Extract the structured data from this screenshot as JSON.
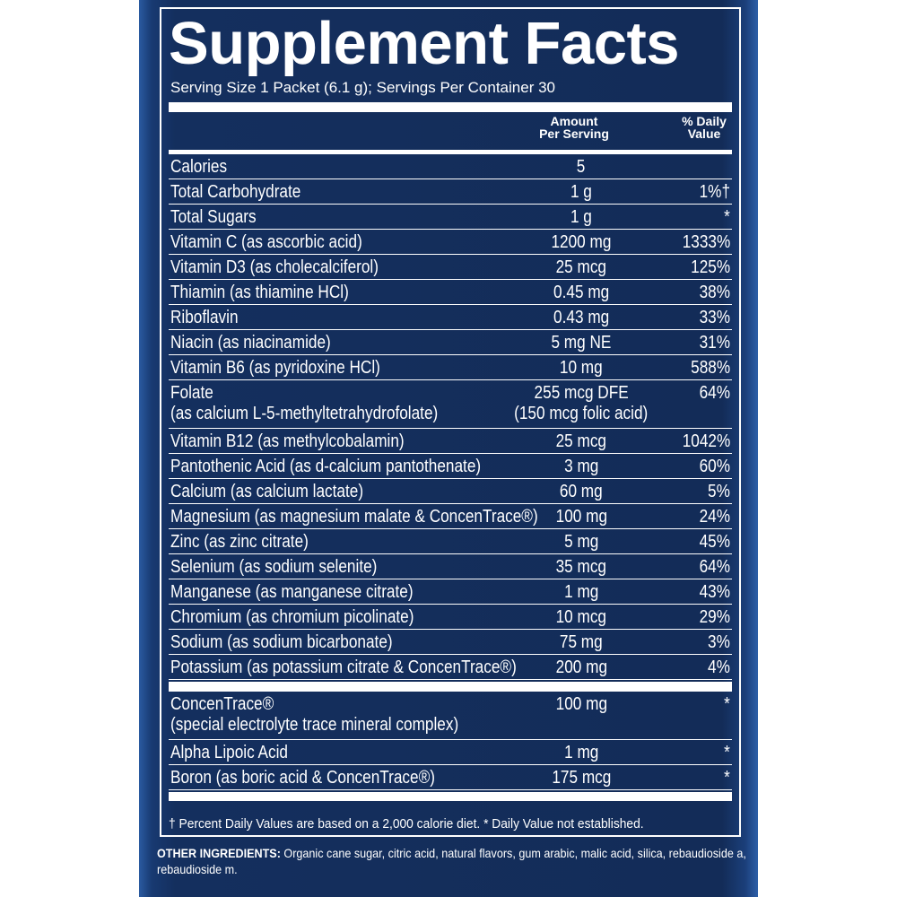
{
  "header": {
    "title": "Supplement Facts",
    "serving": "Serving Size 1 Packet (6.1 g); Servings Per Container 30"
  },
  "columns": {
    "amount": [
      "Amount",
      "Per Serving"
    ],
    "daily_value": [
      "% Daily",
      "Value"
    ]
  },
  "sections": [
    {
      "rows": [
        {
          "name": "Calories",
          "amount": "5"
        },
        {
          "name": "Total Carbohydrate",
          "amount": "1 g",
          "dv": "1%†"
        },
        {
          "name": " Total Sugars",
          "amount": "1 g",
          "dv": "*"
        },
        {
          "name": "Vitamin C (as ascorbic acid)",
          "amount": "1200 mg",
          "dv": "1333%"
        },
        {
          "name": "Vitamin D3 (as cholecalciferol)",
          "amount": "25 mcg",
          "dv": "125%"
        },
        {
          "name": "Thiamin (as thiamine HCl)",
          "amount": "0.45 mg",
          "dv": "38%"
        },
        {
          "name": "Riboflavin",
          "amount": "0.43 mg",
          "dv": "33%"
        },
        {
          "name": "Niacin (as niacinamide)",
          "amount": "5 mg NE",
          "dv": "31%"
        },
        {
          "name": "Vitamin B6 (as pyridoxine HCl)",
          "amount": "10 mg",
          "dv": "588%"
        },
        {
          "name": "Folate",
          "detail": "(as calcium L-5-methyltetrahydrofolate)",
          "amount": "255 mcg DFE",
          "amount_detail": "(150 mcg folic acid)",
          "dv": "64%"
        },
        {
          "name": "Vitamin B12 (as methylcobalamin)",
          "amount": "25 mcg",
          "dv": "1042%"
        },
        {
          "name": "Pantothenic Acid (as d-calcium pantothenate)",
          "amount": "3 mg",
          "dv": "60%"
        },
        {
          "name": "Calcium (as calcium lactate)",
          "amount": "60 mg",
          "dv": "5%"
        },
        {
          "name": "Magnesium (as magnesium malate & ConcenTrace®)",
          "amount": "100 mg",
          "dv": "24%"
        },
        {
          "name": "Zinc (as zinc citrate)",
          "amount": "5 mg",
          "dv": "45%"
        },
        {
          "name": "Selenium (as sodium selenite)",
          "amount": "35 mcg",
          "dv": "64%"
        },
        {
          "name": "Manganese (as manganese citrate)",
          "amount": "1 mg",
          "dv": "43%"
        },
        {
          "name": "Chromium (as chromium picolinate)",
          "amount": "10 mcg",
          "dv": "29%"
        },
        {
          "name": "Sodium (as sodium bicarbonate)",
          "amount": "75 mg",
          "dv": "3%"
        },
        {
          "name": "Potassium (as potassium citrate & ConcenTrace®)",
          "amount": "200 mg",
          "dv": "4%"
        }
      ]
    },
    {
      "rows": [
        {
          "name": "ConcenTrace®",
          "detail": "(special electrolyte trace mineral complex)",
          "amount": "100 mg",
          "dv": "*"
        },
        {
          "name": "Alpha Lipoic Acid",
          "amount": "1 mg",
          "dv": "*"
        },
        {
          "name": "Boron (as boric acid & ConcenTrace®)",
          "amount": "175 mcg",
          "dv": "*"
        }
      ]
    }
  ],
  "footnote": "† Percent Daily Values are based on a 2,000 calorie diet. * Daily Value not established.",
  "other_ingredients": {
    "label": "OTHER INGREDIENTS:",
    "text": "Organic cane sugar, citric acid, natural flavors, gum arabic, malic acid, silica, rebaudioside a, rebaudioside m."
  }
}
